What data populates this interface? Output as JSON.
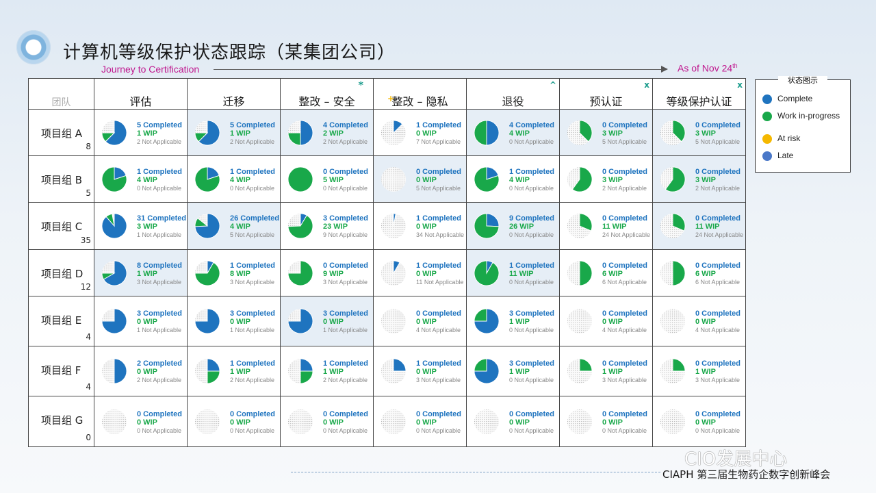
{
  "header": {
    "title": "计算机等级保护状态跟踪（某集团公司）",
    "journey": "Journey to Certification",
    "as_of_text": "As of Nov 24",
    "as_of_sup": "th"
  },
  "columns": [
    {
      "label": "团队",
      "mark": ""
    },
    {
      "label": "评估",
      "mark": ""
    },
    {
      "label": "迁移",
      "mark": ""
    },
    {
      "label": "整改 – 安全",
      "mark": "*"
    },
    {
      "label": "整改 – 隐私",
      "mark": "+"
    },
    {
      "label": "退役",
      "mark": "^"
    },
    {
      "label": "预认证",
      "mark": "x"
    },
    {
      "label": "等级保护认证",
      "mark": "x"
    }
  ],
  "legend": {
    "title": "状态图示",
    "items": [
      {
        "label": "Complete",
        "color": "#1f74bf"
      },
      {
        "label": "Work in-progress",
        "color": "#19a84a"
      },
      {
        "label": "At risk",
        "color": "#f5b800"
      },
      {
        "label": "Late",
        "color": "#4a78c8"
      }
    ]
  },
  "teams": [
    {
      "name": "项目组 A",
      "count": "8",
      "cells": [
        {
          "c": "5 Completed",
          "w": "1 WIP",
          "n": "2 Not Applicable"
        },
        {
          "c": "5 Completed",
          "w": "1 WIP",
          "n": "2 Not Applicable"
        },
        {
          "c": "4 Completed",
          "w": "2 WIP",
          "n": "2 Not Applicable"
        },
        {
          "c": "1 Completed",
          "w": "0 WIP",
          "n": "7 Not Applicable"
        },
        {
          "c": "4 Completed",
          "w": "4 WIP",
          "n": "0 Not Applicable"
        },
        {
          "c": "0 Completed",
          "w": "3 WIP",
          "n": "5 Not Applicable"
        },
        {
          "c": "0 Completed",
          "w": "3 WIP",
          "n": "5 Not Applicable"
        }
      ]
    },
    {
      "name": "项目组 B",
      "count": "5",
      "cells": [
        {
          "c": "1 Completed",
          "w": "4 WIP",
          "n": "0 Not Applicable"
        },
        {
          "c": "1 Completed",
          "w": "4 WIP",
          "n": "0 Not Applicable"
        },
        {
          "c": "0 Completed",
          "w": "5 WIP",
          "n": "0 Not Applicable"
        },
        {
          "c": "0 Completed",
          "w": "0 WIP",
          "n": "5 Not Applicable"
        },
        {
          "c": "1 Completed",
          "w": "4 WIP",
          "n": "0 Not Applicable"
        },
        {
          "c": "0 Completed",
          "w": "3 WIP",
          "n": "2 Not Applicable"
        },
        {
          "c": "0 Completed",
          "w": "3 WIP",
          "n": "2 Not Applicable"
        }
      ]
    },
    {
      "name": "项目组 C",
      "count": "35",
      "cells": [
        {
          "c": "31 Completed",
          "w": "3 WIP",
          "n": "1 Not Applicable"
        },
        {
          "c": "26 Completed",
          "w": "4 WIP",
          "n": "5 Not Applicable"
        },
        {
          "c": "3 Completed",
          "w": "23 WIP",
          "n": "9 Not Applicable"
        },
        {
          "c": "1 Completed",
          "w": "0 WIP",
          "n": "34 Not Applicable"
        },
        {
          "c": "9 Completed",
          "w": "26 WIP",
          "n": "0 Not Applicable"
        },
        {
          "c": "0 Completed",
          "w": "11 WIP",
          "n": "24 Not Applicable"
        },
        {
          "c": "0 Completed",
          "w": "11 WIP",
          "n": "24 Not Applicable"
        }
      ]
    },
    {
      "name": "项目组 D",
      "count": "12",
      "cells": [
        {
          "c": "8 Completed",
          "w": "1 WIP",
          "n": "3 Not Applicable"
        },
        {
          "c": "1 Completed",
          "w": "8 WIP",
          "n": "3 Not Applicable"
        },
        {
          "c": "0 Completed",
          "w": "9 WIP",
          "n": "3 Not Applicable"
        },
        {
          "c": "1 Completed",
          "w": "0 WIP",
          "n": "11 Not Applicable"
        },
        {
          "c": "1 Completed",
          "w": "11 WIP",
          "n": "0 Not Applicable"
        },
        {
          "c": "0 Completed",
          "w": "6 WIP",
          "n": "6 Not Applicable"
        },
        {
          "c": "0 Completed",
          "w": "6 WIP",
          "n": "6 Not Applicable"
        }
      ]
    },
    {
      "name": "项目组 E",
      "count": "4",
      "cells": [
        {
          "c": "3 Completed",
          "w": "0 WIP",
          "n": "1 Not Applicable"
        },
        {
          "c": "3 Completed",
          "w": "0 WIP",
          "n": "1 Not Applicable"
        },
        {
          "c": "3 Completed",
          "w": "0 WIP",
          "n": "1 Not Applicable"
        },
        {
          "c": "0 Completed",
          "w": "0 WIP",
          "n": "4 Not Applicable"
        },
        {
          "c": "3 Completed",
          "w": "1 WIP",
          "n": "0 Not Applicable"
        },
        {
          "c": "0 Completed",
          "w": "0 WIP",
          "n": "4 Not Applicable"
        },
        {
          "c": "0 Completed",
          "w": "0 WIP",
          "n": "4 Not Applicable"
        }
      ]
    },
    {
      "name": "项目组 F",
      "count": "4",
      "cells": [
        {
          "c": "2 Completed",
          "w": "0 WIP",
          "n": "2 Not Applicable"
        },
        {
          "c": "1 Completed",
          "w": "1 WIP",
          "n": "2 Not Applicable"
        },
        {
          "c": "1 Completed",
          "w": "1 WIP",
          "n": "2 Not Applicable"
        },
        {
          "c": "1 Completed",
          "w": "0 WIP",
          "n": "3 Not Applicable"
        },
        {
          "c": "3 Completed",
          "w": "1 WIP",
          "n": "0 Not Applicable"
        },
        {
          "c": "0 Completed",
          "w": "1 WIP",
          "n": "3 Not Applicable"
        },
        {
          "c": "0 Completed",
          "w": "1 WIP",
          "n": "3 Not Applicable"
        }
      ]
    },
    {
      "name": "项目组 G",
      "count": "0",
      "cells": [
        {
          "c": "0 Completed",
          "w": "0 WIP",
          "n": "0 Not Applicable"
        },
        {
          "c": "0 Completed",
          "w": "0 WIP",
          "n": "0 Not Applicable"
        },
        {
          "c": "0 Completed",
          "w": "0 WIP",
          "n": "0 Not Applicable"
        },
        {
          "c": "0 Completed",
          "w": "0 WIP",
          "n": "0 Not Applicable"
        },
        {
          "c": "0 Completed",
          "w": "0 WIP",
          "n": "0 Not Applicable"
        },
        {
          "c": "0 Completed",
          "w": "0 WIP",
          "n": "0 Not Applicable"
        },
        {
          "c": "0 Completed",
          "w": "0 WIP",
          "n": "0 Not Applicable"
        }
      ]
    }
  ],
  "footer": {
    "text": "CIAPH 第三届生物药企数字创新峰会",
    "watermark": "CIO发展中心"
  }
}
